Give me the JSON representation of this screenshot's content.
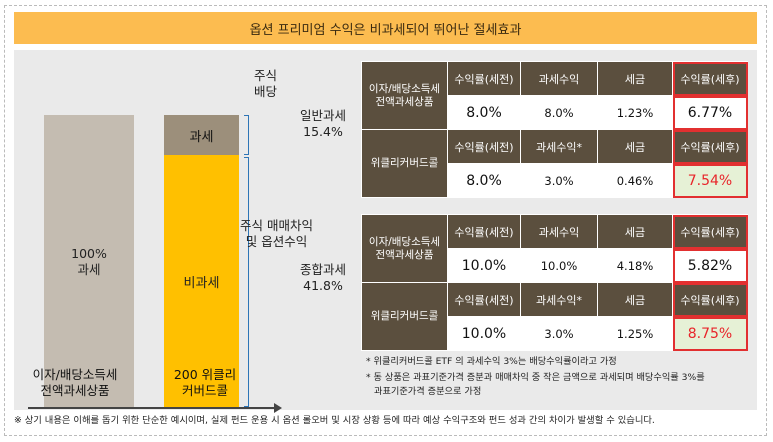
{
  "banner": "옵션 프리미엄 수익은 비과세되어 뛰어난 절세효과",
  "bars": {
    "taxable_full_label": "100%\n과세",
    "tax_segment_label": "과세",
    "nontax_segment_label": "비과세",
    "left_category": "이자/배당소득세\n전액과세상품",
    "right_category": "200 위클리\n커버드콜"
  },
  "bracket_labels": {
    "top": "주식\n배당",
    "bottom": "주식 매매차익\n및 옵션수익"
  },
  "groups": [
    {
      "label": "일반과세\n15.4%",
      "rows": [
        {
          "name": "이자/배당소득세\n전액과세상품",
          "headers": [
            "수익률(세전)",
            "과세수익",
            "세금",
            "수익률(세후)"
          ],
          "values": [
            "8.0%",
            "8.0%",
            "1.23%",
            "6.77%"
          ],
          "after_tax_color": "#2e75b6"
        },
        {
          "name": "위클리커버드콜",
          "headers": [
            "수익률(세전)",
            "과세수익*",
            "세금",
            "수익률(세후)"
          ],
          "values": [
            "8.0%",
            "3.0%",
            "0.46%",
            "7.54%"
          ],
          "after_tax_color": "#e8252a"
        }
      ]
    },
    {
      "label": "종합과세\n41.8%",
      "rows": [
        {
          "name": "이자/배당소득세\n전액과세상품",
          "headers": [
            "수익률(세전)",
            "과세수익",
            "세금",
            "수익률(세후)"
          ],
          "values": [
            "10.0%",
            "10.0%",
            "4.18%",
            "5.82%"
          ],
          "after_tax_color": "#2e75b6"
        },
        {
          "name": "위클리커버드콜",
          "headers": [
            "수익률(세전)",
            "과세수익*",
            "세금",
            "수익률(세후)"
          ],
          "values": [
            "10.0%",
            "3.0%",
            "1.25%",
            "8.75%"
          ],
          "after_tax_color": "#e8252a"
        }
      ]
    }
  ],
  "notes": [
    "* 위클리커버드콜 ETF 의 과세수익 3%는 배당수익률이라고 가정",
    "* 동 상품은 과표기준가격 증분과 매매차익 중 작은 금액으로 과세되며 배당수익률 3%를",
    "과표기준가격 증분으로 가정"
  ],
  "footer": "※ 상기 내용은 이해를 돕기 위한 단순한 예시이며, 실제 펀드 운용 시 옵션 롤오버 및 시장 상황 등에 따라 예상 수익구조와 펀드 성과 간의 차이가 발생할 수 있습니다."
}
